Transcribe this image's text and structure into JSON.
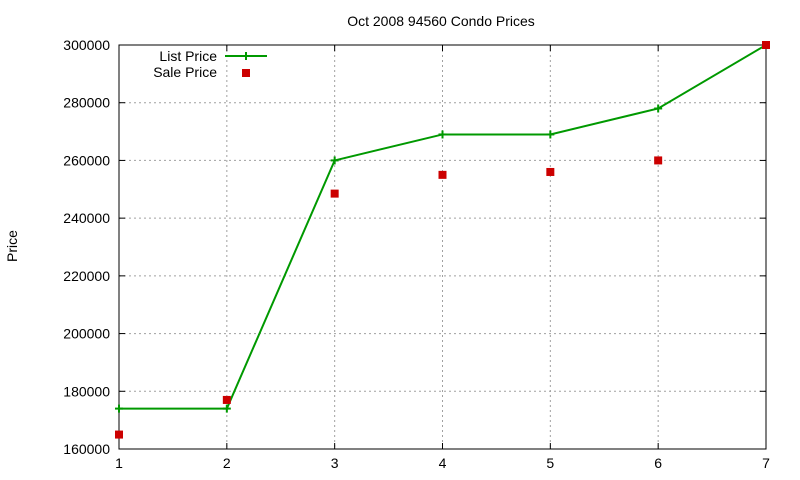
{
  "chart_data": {
    "type": "line",
    "title": "Oct 2008 94560 Condo Prices",
    "xlabel": "",
    "ylabel": "Price",
    "x": [
      1,
      2,
      3,
      4,
      5,
      6,
      7
    ],
    "xlim": [
      1,
      7
    ],
    "ylim": [
      160000,
      300000
    ],
    "xticks": [
      1,
      2,
      3,
      4,
      5,
      6,
      7
    ],
    "yticks": [
      160000,
      180000,
      200000,
      220000,
      240000,
      260000,
      280000,
      300000
    ],
    "grid": true,
    "legend_position": "top-left",
    "series": [
      {
        "name": "List Price",
        "style": "line-points",
        "marker": "plus",
        "color": "#009900",
        "values": [
          174000,
          174000,
          260000,
          269000,
          269000,
          278000,
          300000
        ]
      },
      {
        "name": "Sale Price",
        "style": "points",
        "marker": "square",
        "color": "#cc0000",
        "values": [
          165000,
          177000,
          248500,
          255000,
          256000,
          260000,
          300000
        ]
      }
    ]
  }
}
